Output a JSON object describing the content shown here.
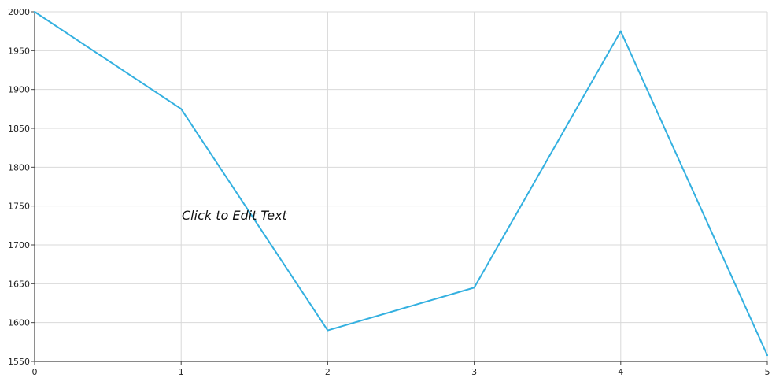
{
  "chart_data": {
    "type": "line",
    "title": "",
    "xlabel": "",
    "ylabel": "",
    "x": [
      0,
      1,
      2,
      3,
      4,
      5
    ],
    "series": [
      {
        "values": [
          2000,
          1875,
          1590,
          1645,
          1975,
          1558
        ],
        "color": "#33b0e0"
      }
    ],
    "xlim": [
      0,
      5
    ],
    "ylim": [
      1550,
      2000
    ],
    "x_ticks": [
      "0",
      "1",
      "2",
      "3",
      "4",
      "5"
    ],
    "y_ticks": [
      "1550",
      "1600",
      "1650",
      "1700",
      "1750",
      "1800",
      "1850",
      "1900",
      "1950",
      "2000"
    ],
    "grid": true,
    "legend": "none",
    "annotation": "Click to Edit Text"
  }
}
